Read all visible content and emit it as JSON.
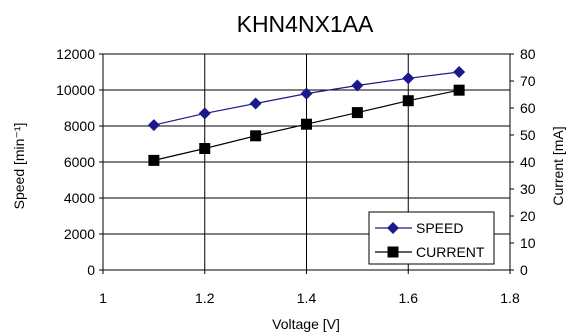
{
  "chart_data": {
    "type": "line",
    "title": "KHN4NX1AA",
    "xlabel": "Voltage [V]",
    "ylabel": "Speed [min⁻¹]",
    "y2label": "Current [mA]",
    "xlim": [
      1,
      1.8
    ],
    "ylim": [
      0,
      12000
    ],
    "y2lim": [
      0,
      80
    ],
    "x_ticks": [
      "1",
      "1.2",
      "1.4",
      "1.6",
      "1.8"
    ],
    "y_ticks": [
      "0",
      "2000",
      "4000",
      "6000",
      "8000",
      "10000",
      "12000"
    ],
    "y2_ticks": [
      "0",
      "10",
      "20",
      "30",
      "40",
      "50",
      "60",
      "70",
      "80"
    ],
    "grid": true,
    "legend_position": "bottom-right",
    "series": [
      {
        "name": "SPEED",
        "axis": "left",
        "marker": "diamond",
        "color": "#1a1a8c",
        "x": [
          1.1,
          1.2,
          1.3,
          1.4,
          1.5,
          1.6,
          1.7
        ],
        "values": [
          8050,
          8700,
          9250,
          9800,
          10250,
          10650,
          11000
        ]
      },
      {
        "name": "CURRENT",
        "axis": "right",
        "marker": "square",
        "color": "#000000",
        "x": [
          1.1,
          1.2,
          1.3,
          1.4,
          1.5,
          1.6,
          1.7
        ],
        "values": [
          40.6,
          45.0,
          49.7,
          54.0,
          58.3,
          62.7,
          66.6
        ]
      }
    ]
  }
}
